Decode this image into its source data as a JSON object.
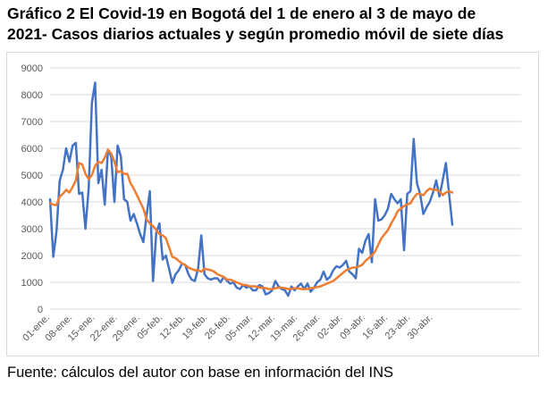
{
  "title_line1": "Gráfico 2 El Covid-19 en Bogotá del 1 de enero al 3 de mayo de",
  "title_line2": "2021- Casos diarios actuales y según promedio móvil de siete días",
  "source_text": "Fuente: cálculos del autor con base en información del INS",
  "colors": {
    "daily": "#4472C4",
    "moving_avg": "#ED7D31",
    "grid": "#d9d9d9",
    "axis_text": "#595959"
  },
  "chart_data": {
    "type": "line",
    "title": "Gráfico 2 El Covid-19 en Bogotá del 1 de enero al 3 de mayo de 2021- Casos diarios actuales y según promedio móvil de siete días",
    "xlabel": "",
    "ylabel": "",
    "ylim": [
      0,
      9000
    ],
    "yticks": [
      0,
      1000,
      2000,
      3000,
      4000,
      5000,
      6000,
      7000,
      8000,
      9000
    ],
    "xtick_labels": [
      "01-ene.",
      "08-ene.",
      "15-ene.",
      "22-ene.",
      "29-ene.",
      "05-feb.",
      "12-feb.",
      "19-feb.",
      "26-feb.",
      "05-mar.",
      "12-mar.",
      "19-mar.",
      "26-mar.",
      "02-abr.",
      "09-abr.",
      "16-abr.",
      "23-abr.",
      "30-abr."
    ],
    "x_start": "01-ene.",
    "grid": true,
    "legend": "none",
    "series": [
      {
        "color": "#4472C4",
        "values": [
          4100,
          1950,
          2900,
          4800,
          5200,
          6000,
          5500,
          6100,
          6200,
          4300,
          4350,
          3000,
          4500,
          7700,
          8450,
          4700,
          5200,
          3900,
          5950,
          5700,
          4000,
          6100,
          5700,
          4100,
          4000,
          3300,
          3550,
          3200,
          2800,
          2500,
          3500,
          4400,
          1050,
          2850,
          3200,
          1850,
          2000,
          1500,
          980,
          1300,
          1450,
          1700,
          1650,
          1300,
          1100,
          1050,
          1500,
          2750,
          1300,
          1150,
          1100,
          1150,
          1150,
          1000,
          1200,
          1050,
          950,
          1000,
          800,
          750,
          900,
          800,
          850,
          700,
          700,
          900,
          850,
          550,
          600,
          700,
          1050,
          850,
          750,
          700,
          500,
          850,
          700,
          850,
          950,
          750,
          950,
          650,
          800,
          1000,
          1100,
          1400,
          1100,
          1200,
          1450,
          1600,
          1550,
          1650,
          1800,
          1400,
          1300,
          1150,
          2250,
          2100,
          2550,
          2800,
          1750,
          4100,
          3300,
          3350,
          3500,
          3750,
          4300,
          4100,
          3950,
          4100,
          2200,
          4300,
          4400,
          6350,
          4700,
          4300,
          3550,
          3800,
          4000,
          4350,
          4800,
          4200,
          4800,
          5450,
          4300,
          3150
        ]
      },
      {
        "color": "#ED7D31",
        "values": [
          3950,
          3900,
          3880,
          4200,
          4300,
          4450,
          4350,
          4550,
          4800,
          5450,
          5400,
          5050,
          4850,
          5000,
          5350,
          5500,
          5450,
          5650,
          5950,
          5800,
          5500,
          5100,
          5150,
          5050,
          5050,
          4700,
          4500,
          4250,
          4000,
          3750,
          3350,
          3200,
          3100,
          2950,
          2800,
          2750,
          2650,
          2300,
          1950,
          1900,
          1800,
          1700,
          1650,
          1550,
          1500,
          1450,
          1450,
          1400,
          1500,
          1480,
          1450,
          1400,
          1300,
          1250,
          1200,
          1100,
          1100,
          1050,
          1000,
          950,
          900,
          900,
          850,
          850,
          850,
          800,
          800,
          780,
          750,
          750,
          780,
          800,
          800,
          780,
          750,
          750,
          780,
          780,
          750,
          750,
          750,
          780,
          800,
          820,
          850,
          900,
          950,
          1000,
          1050,
          1150,
          1250,
          1350,
          1450,
          1500,
          1550,
          1550,
          1600,
          1650,
          1800,
          1900,
          2000,
          2150,
          2400,
          2650,
          2800,
          2950,
          3200,
          3400,
          3650,
          3750,
          3850,
          3900,
          3950,
          4150,
          4300,
          4300,
          4250,
          4400,
          4500,
          4450,
          4450,
          4400,
          4250,
          4350,
          4400,
          4350
        ]
      }
    ]
  }
}
